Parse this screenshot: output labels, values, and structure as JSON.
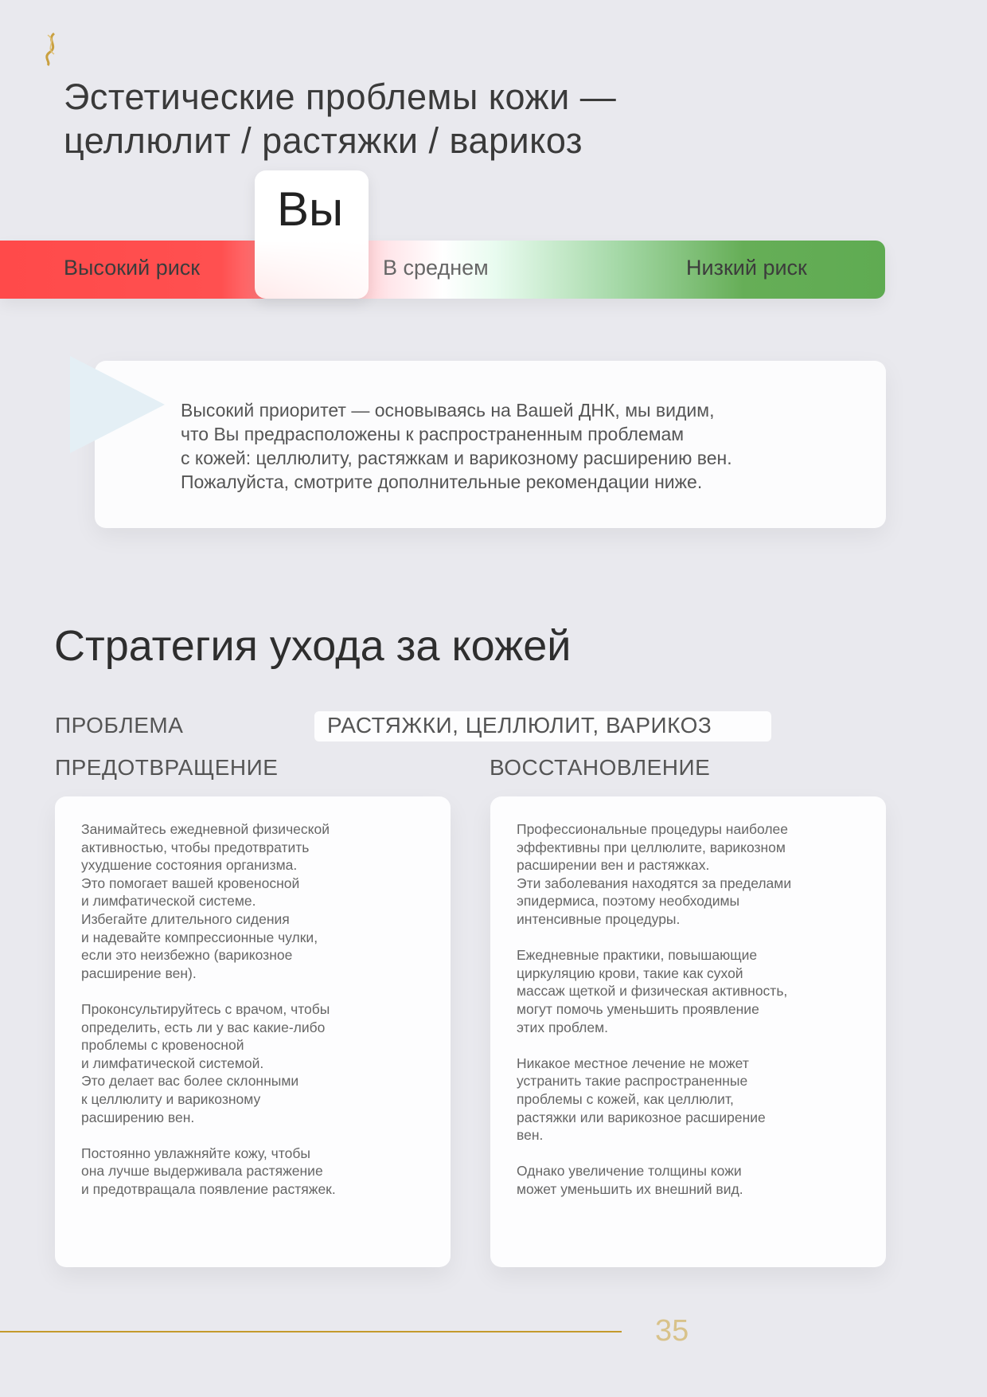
{
  "header": {
    "logo": "dna-logo",
    "title_line1": "Эстетические проблемы кожи —",
    "title_line2": "целлюлит / растяжки / варикоз"
  },
  "risk_scale": {
    "marker_label": "Вы",
    "marker_position": "high-risk / average boundary",
    "labels": [
      "Высокий риск",
      "В среднем",
      "Низкий риск"
    ],
    "colors": {
      "high": "#ff4a4a",
      "average": "#ffffff",
      "low": "#5fab52"
    }
  },
  "callout": {
    "lines": [
      "Высокий приоритет — основываясь на Вашей ДНК, мы видим,",
      "что Вы предрасположены к распространенным проблемам",
      "с кожей: целлюлиту, растяжкам и варикозному расширению вен.",
      "Пожалуйста, смотрите дополнительные рекомендации ниже."
    ]
  },
  "strategy": {
    "heading": "Стратегия ухода за кожей",
    "problem_label": "ПРОБЛЕМА",
    "problem_value": "РАСТЯЖКИ, ЦЕЛЛЮЛИТ, ВАРИКОЗ",
    "prevention_label": "ПРЕДОТВРАЩЕНИЕ",
    "recovery_label": "ВОССТАНОВЛЕНИЕ",
    "prevention_text": "Занимайтесь ежедневной физической\nактивностью, чтобы предотвратить\nухудшение состояния организма.\nЭто помогает вашей кровеносной\nи лимфатической системе.\nИзбегайте длительного сидения\nи надевайте компрессионные чулки,\nесли это неизбежно (варикозное\nрасширение вен).\n\nПроконсультируйтесь с врачом, чтобы\nопределить, есть ли у вас какие-либо\nпроблемы с кровеносной\nи лимфатической системой.\nЭто делает вас более склонными\nк целлюлиту и варикозному\nрасширению вен.\n\nПостоянно увлажняйте кожу, чтобы\nона лучше выдерживала растяжение\nи предотвращала появление растяжек.",
    "recovery_text": "Профессиональные процедуры наиболее\nэффективны при целлюлите, варикозном\nрасширении вен и растяжках.\nЭти заболевания находятся за пределами\nэпидермиса, поэтому необходимы\nинтенсивные процедуры.\n\nЕжедневные практики, повышающие\nциркуляцию крови, такие как сухой\nмассаж щеткой и физическая активность,\nмогут помочь уменьшить проявление\nэтих проблем.\n\nНикакое местное лечение не может\nустранить такие распространенные\nпроблемы с кожей, как целлюлит,\nрастяжки или варикозное расширение\nвен.\n\nОднако увеличение толщины кожи\nможет уменьшить их внешний вид."
  },
  "footer": {
    "page_number": "35",
    "accent_color": "#c49a2c"
  }
}
